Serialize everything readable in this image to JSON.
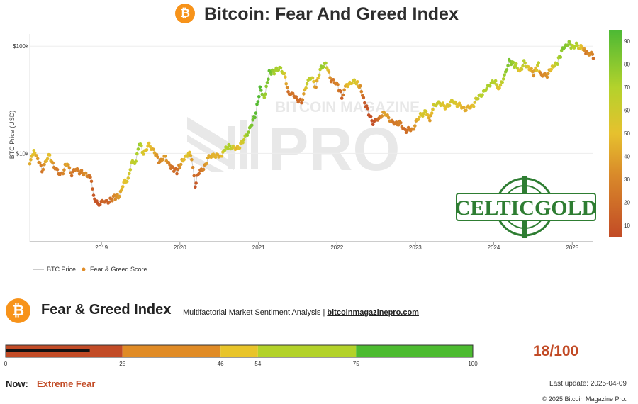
{
  "header": {
    "title": "Bitcoin: Fear And Greed Index",
    "logo_symbol": "₿",
    "brand_color": "#f7931a"
  },
  "watermark": {
    "top": "BITCOIN MAGAZINE",
    "main": "PRO",
    "sponsor": "CELTICGOLD"
  },
  "chart_data": {
    "type": "scatter",
    "title": "Bitcoin: Fear And Greed Index",
    "ylabel": "BTC Price (USD)",
    "xlabel": "",
    "y_scale": "log",
    "yticks": [
      {
        "value": 10000,
        "label": "$10k"
      },
      {
        "value": 100000,
        "label": "$100k"
      }
    ],
    "ylim": [
      1500,
      130000
    ],
    "x_range": [
      "2018-02-01",
      "2025-04-09"
    ],
    "xticks": [
      "2019",
      "2020",
      "2021",
      "2022",
      "2023",
      "2024",
      "2025"
    ],
    "legend": [
      "BTC Price",
      "Fear & Greed Score"
    ],
    "legend_position": "bottom-left",
    "colorbar": {
      "ticks": [
        10,
        20,
        30,
        40,
        50,
        60,
        70,
        80,
        90
      ],
      "range": [
        5,
        95
      ],
      "colors": [
        "#c24b26",
        "#d98a2a",
        "#e6c12e",
        "#b4d22c",
        "#4cb934"
      ]
    },
    "series": [
      {
        "name": "Fear & Greed Score",
        "points": [
          [
            "2018-02-01",
            8200,
            40
          ],
          [
            "2018-02-20",
            10500,
            55
          ],
          [
            "2018-03-10",
            9000,
            35
          ],
          [
            "2018-03-30",
            7000,
            20
          ],
          [
            "2018-04-20",
            8800,
            45
          ],
          [
            "2018-05-05",
            9500,
            50
          ],
          [
            "2018-05-25",
            7500,
            25
          ],
          [
            "2018-06-15",
            6500,
            20
          ],
          [
            "2018-07-01",
            6400,
            22
          ],
          [
            "2018-07-25",
            8300,
            40
          ],
          [
            "2018-08-15",
            6300,
            18
          ],
          [
            "2018-09-05",
            7200,
            25
          ],
          [
            "2018-09-25",
            6600,
            22
          ],
          [
            "2018-10-20",
            6500,
            30
          ],
          [
            "2018-11-15",
            5600,
            15
          ],
          [
            "2018-11-25",
            4000,
            10
          ],
          [
            "2018-12-15",
            3300,
            8
          ],
          [
            "2019-01-10",
            3700,
            15
          ],
          [
            "2019-02-01",
            3500,
            12
          ],
          [
            "2019-02-25",
            3900,
            25
          ],
          [
            "2019-03-25",
            4000,
            35
          ],
          [
            "2019-04-10",
            5100,
            48
          ],
          [
            "2019-05-05",
            5800,
            55
          ],
          [
            "2019-05-20",
            8000,
            65
          ],
          [
            "2019-06-10",
            8500,
            70
          ],
          [
            "2019-06-26",
            12800,
            80
          ],
          [
            "2019-07-15",
            10000,
            55
          ],
          [
            "2019-08-10",
            11800,
            50
          ],
          [
            "2019-09-05",
            10500,
            40
          ],
          [
            "2019-09-25",
            8400,
            25
          ],
          [
            "2019-10-25",
            9200,
            35
          ],
          [
            "2019-11-20",
            7500,
            20
          ],
          [
            "2019-12-18",
            6800,
            15
          ],
          [
            "2020-01-15",
            8700,
            45
          ],
          [
            "2020-02-10",
            10200,
            55
          ],
          [
            "2020-02-25",
            9000,
            35
          ],
          [
            "2020-03-12",
            4900,
            8
          ],
          [
            "2020-03-25",
            6600,
            15
          ],
          [
            "2020-04-20",
            7100,
            25
          ],
          [
            "2020-05-10",
            9000,
            40
          ],
          [
            "2020-06-10",
            9700,
            45
          ],
          [
            "2020-07-10",
            9300,
            40
          ],
          [
            "2020-07-28",
            11000,
            70
          ],
          [
            "2020-08-20",
            11800,
            75
          ],
          [
            "2020-09-20",
            10900,
            45
          ],
          [
            "2020-10-20",
            12800,
            60
          ],
          [
            "2020-11-10",
            15500,
            80
          ],
          [
            "2020-12-01",
            19000,
            85
          ],
          [
            "2020-12-20",
            24000,
            92
          ],
          [
            "2021-01-08",
            40000,
            94
          ],
          [
            "2021-01-28",
            33000,
            75
          ],
          [
            "2021-02-20",
            57000,
            90
          ],
          [
            "2021-03-15",
            58000,
            75
          ],
          [
            "2021-04-14",
            63500,
            75
          ],
          [
            "2021-05-01",
            56000,
            60
          ],
          [
            "2021-05-19",
            37000,
            18
          ],
          [
            "2021-06-10",
            35000,
            20
          ],
          [
            "2021-07-20",
            29800,
            15
          ],
          [
            "2021-08-15",
            46500,
            65
          ],
          [
            "2021-09-05",
            51000,
            70
          ],
          [
            "2021-09-25",
            42000,
            30
          ],
          [
            "2021-10-20",
            65000,
            80
          ],
          [
            "2021-11-10",
            68000,
            75
          ],
          [
            "2021-12-05",
            49000,
            20
          ],
          [
            "2022-01-05",
            43000,
            25
          ],
          [
            "2022-01-24",
            34000,
            12
          ],
          [
            "2022-02-15",
            44000,
            45
          ],
          [
            "2022-03-28",
            47000,
            60
          ],
          [
            "2022-04-20",
            41000,
            30
          ],
          [
            "2022-05-10",
            30000,
            10
          ],
          [
            "2022-06-18",
            19000,
            6
          ],
          [
            "2022-07-10",
            21000,
            15
          ],
          [
            "2022-08-14",
            24000,
            40
          ],
          [
            "2022-09-20",
            19000,
            20
          ],
          [
            "2022-10-20",
            19200,
            25
          ],
          [
            "2022-11-10",
            16500,
            15
          ],
          [
            "2022-12-20",
            16800,
            25
          ],
          [
            "2023-01-25",
            23000,
            55
          ],
          [
            "2023-02-20",
            24500,
            60
          ],
          [
            "2023-03-10",
            20500,
            35
          ],
          [
            "2023-03-28",
            28000,
            60
          ],
          [
            "2023-04-14",
            30400,
            65
          ],
          [
            "2023-05-20",
            27000,
            50
          ],
          [
            "2023-06-25",
            30500,
            60
          ],
          [
            "2023-08-20",
            26000,
            40
          ],
          [
            "2023-09-20",
            27000,
            45
          ],
          [
            "2023-10-25",
            34500,
            70
          ],
          [
            "2023-11-20",
            37500,
            72
          ],
          [
            "2023-12-10",
            44000,
            75
          ],
          [
            "2024-01-10",
            46500,
            70
          ],
          [
            "2024-01-23",
            39500,
            50
          ],
          [
            "2024-02-20",
            52000,
            78
          ],
          [
            "2024-03-13",
            73000,
            85
          ],
          [
            "2024-04-20",
            64000,
            70
          ],
          [
            "2024-05-01",
            58000,
            50
          ],
          [
            "2024-05-21",
            70000,
            72
          ],
          [
            "2024-07-05",
            56000,
            30
          ],
          [
            "2024-07-28",
            68000,
            70
          ],
          [
            "2024-08-05",
            54000,
            25
          ],
          [
            "2024-09-06",
            54000,
            30
          ],
          [
            "2024-09-30",
            64000,
            55
          ],
          [
            "2024-10-20",
            68000,
            70
          ],
          [
            "2024-11-12",
            88000,
            80
          ],
          [
            "2024-11-22",
            98000,
            85
          ],
          [
            "2024-12-17",
            106000,
            80
          ],
          [
            "2025-01-05",
            97000,
            70
          ],
          [
            "2025-01-20",
            105000,
            75
          ],
          [
            "2025-02-05",
            97000,
            55
          ],
          [
            "2025-02-20",
            96000,
            45
          ],
          [
            "2025-03-05",
            88000,
            20
          ],
          [
            "2025-03-20",
            84000,
            30
          ],
          [
            "2025-04-05",
            83000,
            25
          ],
          [
            "2025-04-09",
            77000,
            18
          ]
        ]
      }
    ]
  },
  "index_panel": {
    "logo_symbol": "₿",
    "title": "Fear & Greed Index",
    "desc": "Multifactorial Market Sentiment Analysis |",
    "link": "bitcoinmagazinepro.com",
    "gauge": {
      "value": 18,
      "segments": [
        {
          "from": 0,
          "to": 25,
          "color": "#c24b26"
        },
        {
          "from": 25,
          "to": 46,
          "color": "#e08b25"
        },
        {
          "from": 46,
          "to": 54,
          "color": "#e8c42a"
        },
        {
          "from": 54,
          "to": 75,
          "color": "#b3d22a"
        },
        {
          "from": 75,
          "to": 100,
          "color": "#4cbb30"
        }
      ],
      "tick_labels": [
        "0",
        "25",
        "46",
        "54",
        "75",
        "100"
      ]
    },
    "score_text": "18/100",
    "now_label": "Now:",
    "now_value": "Extreme Fear",
    "last_update": "Last update: 2025-04-09",
    "copyright": "© 2025 Bitcoin Magazine Pro."
  }
}
